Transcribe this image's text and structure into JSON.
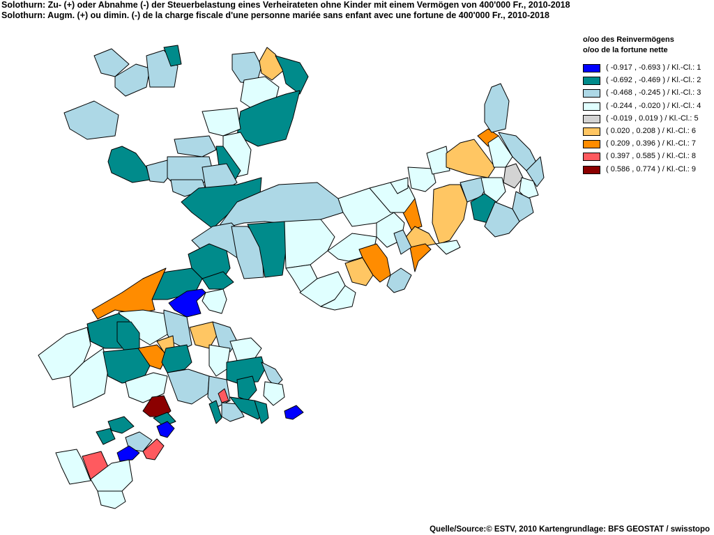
{
  "title": {
    "line1": "Solothurn: Zu- (+) oder Abnahme (-) der Steuerbelastung  eines Verheirateten ohne Kinder mit einem Vermögen von 400'000 Fr., 2010-2018",
    "line2": "Solothurn: Augm. (+) ou dimin. (-) de la charge fiscale d'une personne mariée sans enfant avec une fortune de 400'000 Fr., 2010-2018"
  },
  "legend": {
    "header1": "o/oo des Reinvermögens",
    "header2": "o/oo de la fortune nette",
    "classes": [
      {
        "label": "( -0.917 , -0.693 ) / Kl.-Cl.: 1",
        "color": "#0000ff"
      },
      {
        "label": "( -0.692 , -0.469 ) / Kl.-Cl.: 2",
        "color": "#008b8b"
      },
      {
        "label": "( -0.468 , -0.245 ) / Kl.-Cl.: 3",
        "color": "#add8e6"
      },
      {
        "label": "( -0.244 , -0.020 ) / Kl.-Cl.: 4",
        "color": "#e0ffff"
      },
      {
        "label": "( -0.019 , 0.019 ) / Kl.-Cl.: 5",
        "color": "#d3d3d3"
      },
      {
        "label": "( 0.020 , 0.208 ) / Kl.-Cl.: 6",
        "color": "#ffc663"
      },
      {
        "label": "( 0.209 , 0.396 ) / Kl.-Cl.: 7",
        "color": "#ff8c00"
      },
      {
        "label": "( 0.397 , 0.585 ) / Kl.-Cl.: 8",
        "color": "#ff5a5f"
      },
      {
        "label": "( 0.586 , 0.774 ) / Kl.-Cl.: 9",
        "color": "#8b0000"
      }
    ]
  },
  "source": "Quelle/Source:© ESTV, 2010 Kartengrundlage: BFS GEOSTAT / swisstopo"
}
